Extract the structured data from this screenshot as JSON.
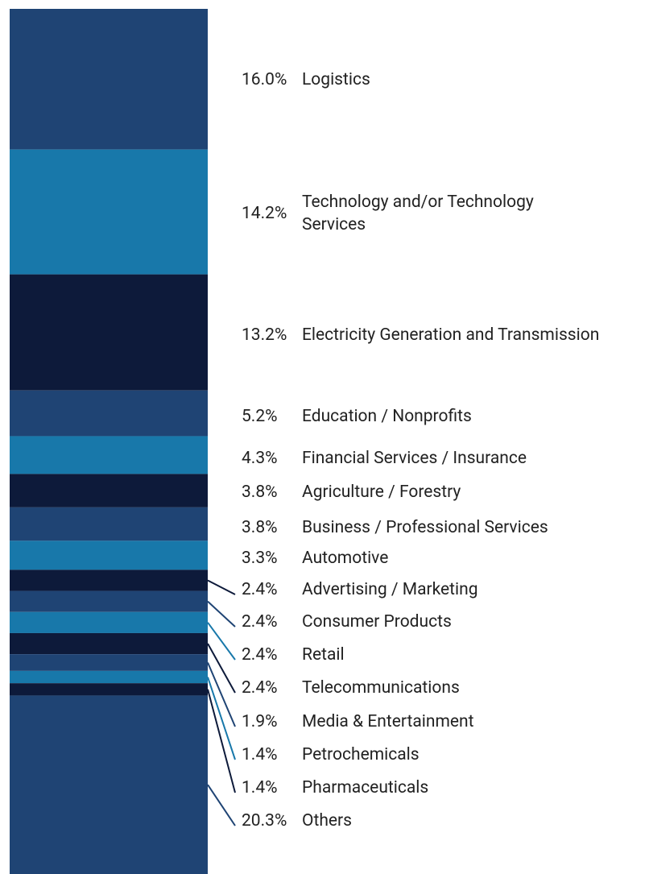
{
  "chart_data": {
    "type": "stacked_bar",
    "categories": [
      "Logistics",
      "Technology and/or Technology Services",
      "Electricity Generation and Transmission",
      "Education / Nonprofits",
      "Financial Services / Insurance",
      "Agriculture / Forestry",
      "Business / Professional Services",
      "Automotive",
      "Advertising / Marketing",
      "Consumer Products",
      "Retail",
      "Telecommunications",
      "Media & Entertainment",
      "Petrochemicals",
      "Pharmaceuticals",
      "Others"
    ],
    "values": [
      16.0,
      14.2,
      13.2,
      5.2,
      4.3,
      3.8,
      3.8,
      3.3,
      2.4,
      2.4,
      2.4,
      2.4,
      1.9,
      1.4,
      1.4,
      20.3
    ],
    "value_labels": [
      "16.0%",
      "14.2%",
      "13.2%",
      "5.2%",
      "4.3%",
      "3.8%",
      "3.8%",
      "3.3%",
      "2.4%",
      "2.4%",
      "2.4%",
      "2.4%",
      "1.9%",
      "1.4%",
      "1.4%",
      "20.3%"
    ],
    "colors": [
      "#1f4474",
      "#1878aa",
      "#0d1a3a"
    ]
  }
}
